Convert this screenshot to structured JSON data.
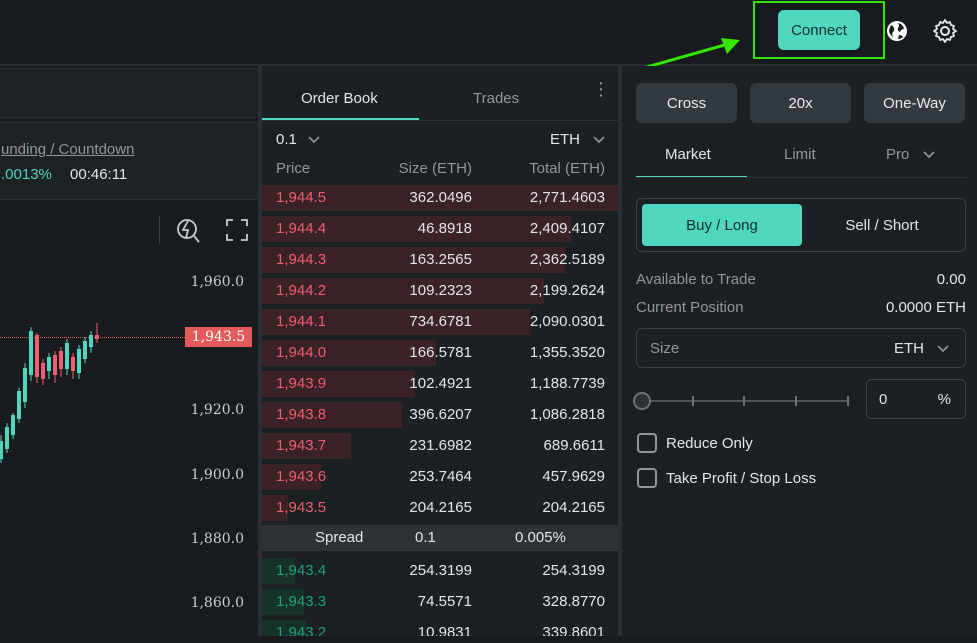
{
  "topbar": {
    "connect_label": "Connect",
    "globe_icon": "globe-icon",
    "settings_icon": "gear-icon",
    "highlight_color": "#35e500",
    "accent_color": "#4fd6be"
  },
  "left": {
    "funding_label": "unding / Countdown",
    "funding_rate": ".0013%",
    "countdown": "00:46:11",
    "price_axis": [
      "1,960.0",
      "1,920.0",
      "1,900.0",
      "1,880.0",
      "1,860.0"
    ],
    "current_price": "1,943.5"
  },
  "orderbook": {
    "tab_order_book": "Order Book",
    "tab_trades": "Trades",
    "group_value": "0.1",
    "unit_value": "ETH",
    "col_price": "Price",
    "col_size": "Size (ETH)",
    "col_total": "Total (ETH)",
    "asks": [
      {
        "price": "1,944.5",
        "size": "362.0496",
        "total": "2,771.4603"
      },
      {
        "price": "1,944.4",
        "size": "46.8918",
        "total": "2,409.4107"
      },
      {
        "price": "1,944.3",
        "size": "163.2565",
        "total": "2,362.5189"
      },
      {
        "price": "1,944.2",
        "size": "109.2323",
        "total": "2,199.2624"
      },
      {
        "price": "1,944.1",
        "size": "734.6781",
        "total": "2,090.0301"
      },
      {
        "price": "1,944.0",
        "size": "166.5781",
        "total": "1,355.3520"
      },
      {
        "price": "1,943.9",
        "size": "102.4921",
        "total": "1,188.7739"
      },
      {
        "price": "1,943.8",
        "size": "396.6207",
        "total": "1,086.2818"
      },
      {
        "price": "1,943.7",
        "size": "231.6982",
        "total": "689.6611"
      },
      {
        "price": "1,943.6",
        "size": "253.7464",
        "total": "457.9629"
      },
      {
        "price": "1,943.5",
        "size": "204.2165",
        "total": "204.2165"
      }
    ],
    "spread_label": "Spread",
    "spread_value": "0.1",
    "spread_pct": "0.005%",
    "bids": [
      {
        "price": "1,943.4",
        "size": "254.3199",
        "total": "254.3199"
      },
      {
        "price": "1,943.3",
        "size": "74.5571",
        "total": "328.8770"
      },
      {
        "price": "1,943.2",
        "size": "10.9831",
        "total": "339.8601"
      }
    ]
  },
  "trade": {
    "margin_mode": "Cross",
    "leverage": "20x",
    "position_mode": "One-Way",
    "tab_market": "Market",
    "tab_limit": "Limit",
    "tab_pro": "Pro",
    "buy_label": "Buy / Long",
    "sell_label": "Sell / Short",
    "available_label": "Available to Trade",
    "available_value": "0.00",
    "position_label": "Current Position",
    "position_value": "0.0000 ETH",
    "size_label": "Size",
    "size_unit": "ETH",
    "percent_value": "0",
    "percent_symbol": "%",
    "reduce_only": "Reduce Only",
    "tp_sl": "Take Profit / Stop Loss"
  }
}
